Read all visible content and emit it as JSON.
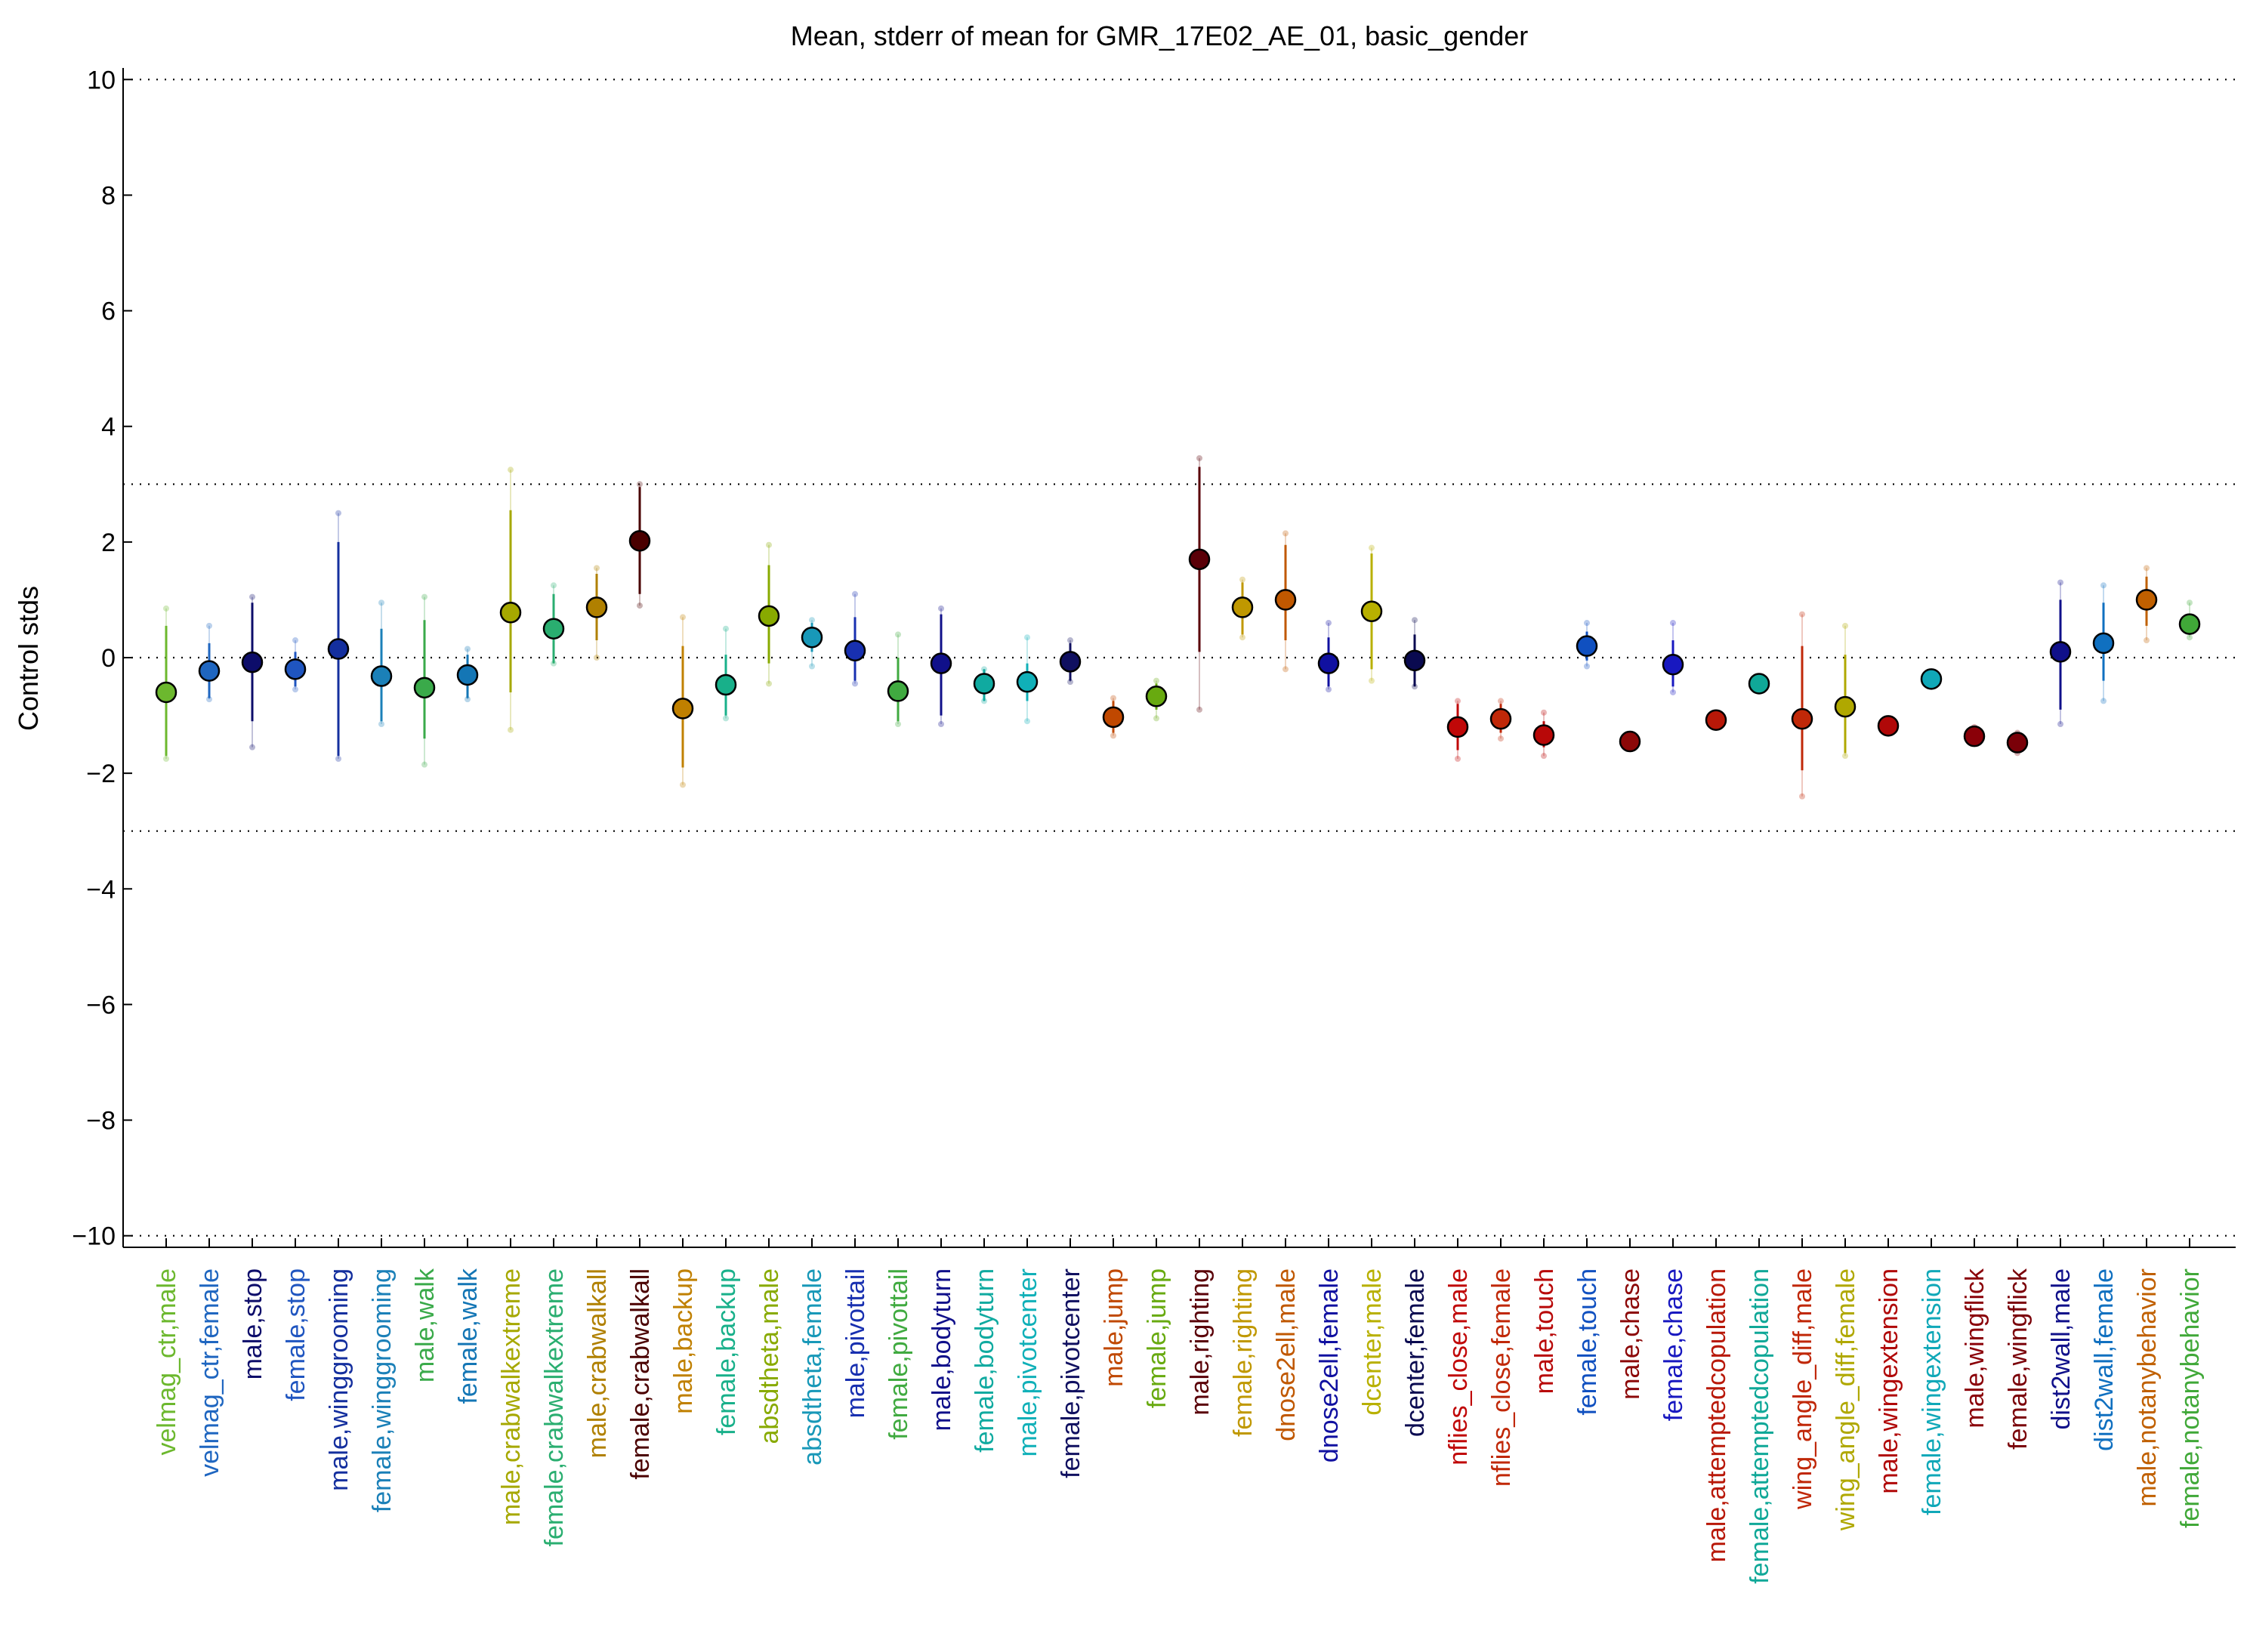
{
  "chart_data": {
    "type": "scatter",
    "title": "Mean, stderr of mean for GMR_17E02_AE_01, basic_gender",
    "xlabel": "",
    "ylabel": "Control stds",
    "ylim": [
      -10.2,
      10.2
    ],
    "yticks": [
      10,
      8,
      6,
      4,
      2,
      0,
      -2,
      -4,
      -6,
      -8,
      -10
    ],
    "ytick_labels": [
      "10",
      "8",
      "6",
      "4",
      "2",
      "0",
      "−2",
      "−4",
      "−6",
      "−8",
      "−10"
    ],
    "reference_lines": [
      10,
      3,
      0,
      -3,
      -10
    ],
    "grid": false,
    "categories": [
      "velmag_ctr,male",
      "velmag_ctr,female",
      "male,stop",
      "female,stop",
      "male,winggrooming",
      "female,winggrooming",
      "male,walk",
      "female,walk",
      "male,crabwalkextreme",
      "female,crabwalkextreme",
      "male,crabwalkall",
      "female,crabwalkall",
      "male,backup",
      "female,backup",
      "absdtheta,male",
      "absdtheta,female",
      "male,pivottail",
      "female,pivottail",
      "male,bodyturn",
      "female,bodyturn",
      "male,pivotcenter",
      "female,pivotcenter",
      "male,jump",
      "female,jump",
      "male,righting",
      "female,righting",
      "dnose2ell,male",
      "dnose2ell,female",
      "dcenter,male",
      "dcenter,female",
      "nflies_close,male",
      "nflies_close,female",
      "male,touch",
      "female,touch",
      "male,chase",
      "female,chase",
      "male,attemptedcopulation",
      "female,attemptedcopulation",
      "wing_angle_diff,male",
      "wing_angle_diff,female",
      "male,wingextension",
      "female,wingextension",
      "male,wingflick",
      "female,wingflick",
      "dist2wall,male",
      "dist2wall,female",
      "male,notanybehavior",
      "female,notanybehavior"
    ],
    "means": [
      -0.6,
      -0.23,
      -0.08,
      -0.2,
      0.15,
      -0.32,
      -0.52,
      -0.3,
      0.78,
      0.5,
      0.87,
      2.02,
      -0.88,
      -0.47,
      0.72,
      0.35,
      0.12,
      -0.58,
      -0.1,
      -0.45,
      -0.42,
      -0.07,
      -1.03,
      -0.67,
      1.7,
      0.87,
      1.0,
      -0.1,
      0.8,
      -0.05,
      -1.2,
      -1.06,
      -1.34,
      0.2,
      -1.45,
      -0.12,
      -1.08,
      -0.45,
      -1.06,
      -0.85,
      -1.18,
      -0.37,
      -1.36,
      -1.47,
      0.1,
      0.25,
      1.0,
      0.58
    ],
    "err_low": [
      -1.7,
      -0.7,
      -1.1,
      -0.5,
      -1.7,
      -1.1,
      -1.4,
      -0.7,
      -0.6,
      -0.1,
      0.3,
      1.1,
      -1.9,
      -1.0,
      -0.1,
      0.1,
      -0.4,
      -1.1,
      -1.0,
      -0.75,
      -0.75,
      -0.4,
      -1.3,
      -0.9,
      0.1,
      0.4,
      0.3,
      -0.5,
      -0.2,
      -0.5,
      -1.6,
      -1.3,
      -1.55,
      -0.05,
      -1.55,
      -0.5,
      -1.2,
      -0.55,
      -1.95,
      -1.65,
      -1.3,
      -0.45,
      -1.45,
      -1.6,
      -0.9,
      -0.4,
      0.55,
      0.4
    ],
    "err_high": [
      0.55,
      0.25,
      0.95,
      0.1,
      2.0,
      0.5,
      0.65,
      0.05,
      2.55,
      1.1,
      1.45,
      2.95,
      0.2,
      0.05,
      1.6,
      0.6,
      0.7,
      0.0,
      0.75,
      -0.2,
      -0.1,
      0.25,
      -0.75,
      -0.45,
      3.3,
      1.3,
      1.95,
      0.35,
      1.8,
      0.4,
      -0.8,
      -0.8,
      -1.1,
      0.45,
      -1.35,
      0.3,
      -0.95,
      -0.35,
      0.2,
      0.05,
      -1.05,
      -0.3,
      -1.25,
      -1.35,
      1.0,
      0.95,
      1.4,
      0.75
    ],
    "faint_low": [
      -1.75,
      -0.72,
      -1.55,
      -0.55,
      -1.75,
      -1.15,
      -1.85,
      -0.72,
      -1.25,
      -0.1,
      0.0,
      0.9,
      -2.2,
      -1.05,
      -0.45,
      -0.15,
      -0.45,
      -1.15,
      -1.15,
      -0.75,
      -1.1,
      -0.42,
      -1.35,
      -1.05,
      -0.9,
      0.35,
      -0.2,
      -0.55,
      -0.4,
      -0.5,
      -1.75,
      -1.4,
      -1.7,
      -0.15,
      -1.55,
      -0.6,
      -1.2,
      -0.55,
      -2.4,
      -1.7,
      -1.3,
      -0.45,
      -1.45,
      -1.65,
      -1.15,
      -0.75,
      0.3,
      0.35
    ],
    "faint_high": [
      0.85,
      0.55,
      1.05,
      0.3,
      2.5,
      0.95,
      1.05,
      0.15,
      3.25,
      1.25,
      1.55,
      3.0,
      0.7,
      0.5,
      1.95,
      0.65,
      1.1,
      0.4,
      0.85,
      -0.2,
      0.35,
      0.3,
      -0.7,
      -0.4,
      3.45,
      1.35,
      2.15,
      0.6,
      1.9,
      0.65,
      -0.75,
      -0.75,
      -0.95,
      0.6,
      -1.35,
      0.6,
      -0.95,
      -0.35,
      0.75,
      0.55,
      -1.05,
      -0.3,
      -1.2,
      -1.3,
      1.3,
      1.25,
      1.55,
      0.95
    ],
    "colors": [
      "#6cb82e",
      "#1f66c0",
      "#0d0d6a",
      "#1f55c0",
      "#142f9e",
      "#1b80b8",
      "#3aaa4a",
      "#1476b5",
      "#a6a800",
      "#2aae70",
      "#b08000",
      "#4a0000",
      "#c08000",
      "#18b08a",
      "#88aa00",
      "#1898b8",
      "#1830b0",
      "#40aa40",
      "#10108a",
      "#10aaa0",
      "#10b0b8",
      "#101060",
      "#c04800",
      "#68aa10",
      "#5a0008",
      "#c09800",
      "#c05800",
      "#1010a0",
      "#b8b000",
      "#0a0a50",
      "#c00808",
      "#c02808",
      "#b80808",
      "#1050c0",
      "#8c0808",
      "#1818c0",
      "#b81808",
      "#10a898",
      "#c02808",
      "#b0a800",
      "#b00808",
      "#10a8b8",
      "#8a0008",
      "#7a0008",
      "#10108a",
      "#1070c0",
      "#c06000",
      "#40a838"
    ],
    "label_colors": [
      "#6cb82e",
      "#1f66c0",
      "#0d0d6a",
      "#1f55c0",
      "#142f9e",
      "#1b80b8",
      "#3aaa4a",
      "#1476b5",
      "#a6a800",
      "#2aae70",
      "#b08000",
      "#4a0000",
      "#c08000",
      "#18b08a",
      "#88aa00",
      "#1898b8",
      "#1830b0",
      "#40aa40",
      "#10108a",
      "#10aaa0",
      "#10b0b8",
      "#101060",
      "#c04800",
      "#68aa10",
      "#5a0008",
      "#c09800",
      "#c05800",
      "#1010a0",
      "#b8b000",
      "#0a0a50",
      "#c00808",
      "#c02808",
      "#b80808",
      "#1050c0",
      "#8c0808",
      "#1818c0",
      "#b81808",
      "#10a898",
      "#c02808",
      "#b0a800",
      "#b00808",
      "#10a8b8",
      "#8a0008",
      "#7a0008",
      "#10108a",
      "#1070c0",
      "#c06000",
      "#40a838"
    ]
  }
}
